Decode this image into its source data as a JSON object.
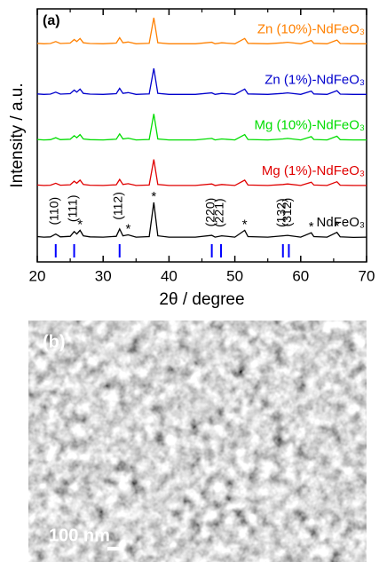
{
  "chart_data": {
    "type": "line",
    "panel_label": "(a)",
    "x_label": "2θ / degree",
    "y_label": "Intensity / a.u.",
    "xlim": [
      20,
      70
    ],
    "xticks": [
      20,
      30,
      40,
      50,
      60,
      70
    ],
    "xticks_minor": [
      25,
      35,
      45,
      55,
      65
    ],
    "ylim": [
      0,
      100
    ],
    "x": [
      20,
      21,
      22,
      22.8,
      23.5,
      25,
      25.6,
      26,
      26.5,
      27,
      28,
      30,
      32,
      32.5,
      33,
      33.8,
      35,
      37,
      37.7,
      38.3,
      40,
      44,
      46.5,
      47,
      48,
      50,
      51.5,
      52,
      55,
      57.3,
      58,
      60,
      61.6,
      62,
      64,
      65.5,
      66,
      68,
      70
    ],
    "series": [
      {
        "name": "Zn (10%)-NdFeO₃",
        "color": "#ff8000",
        "values": [
          86.4,
          86.2,
          86.3,
          87.1,
          86.3,
          86.5,
          87.9,
          87.1,
          88.3,
          86.6,
          86.3,
          86.2,
          86.5,
          88.6,
          86.6,
          86.9,
          86.2,
          86.4,
          96.5,
          86.6,
          86.2,
          86.2,
          86.8,
          86.2,
          86.6,
          86.2,
          88.3,
          86.4,
          86.2,
          86.6,
          86.8,
          86.2,
          87.5,
          86.4,
          86.2,
          87.7,
          86.3,
          86.2,
          86.2
        ]
      },
      {
        "name": "Zn (1%)-NdFeO₃",
        "color": "#0000cc",
        "values": [
          66.4,
          66.2,
          66.3,
          67.1,
          66.3,
          66.5,
          67.9,
          67.1,
          68.3,
          66.6,
          66.3,
          66.2,
          66.5,
          68.6,
          66.6,
          66.9,
          66.2,
          66.4,
          76.5,
          66.6,
          66.2,
          66.2,
          66.8,
          66.2,
          66.6,
          66.2,
          68.3,
          66.4,
          66.2,
          66.6,
          66.8,
          66.2,
          67.5,
          66.4,
          66.2,
          67.7,
          66.3,
          66.2,
          66.2
        ]
      },
      {
        "name": "Mg (10%)-NdFeO₃",
        "color": "#00dd00",
        "values": [
          48.4,
          48.2,
          48.3,
          49.1,
          48.3,
          48.5,
          49.9,
          49.1,
          50.3,
          48.6,
          48.3,
          48.2,
          48.5,
          50.6,
          48.6,
          48.9,
          48.2,
          48.4,
          58.5,
          48.6,
          48.2,
          48.2,
          48.8,
          48.2,
          48.6,
          48.2,
          50.3,
          48.4,
          48.2,
          48.6,
          48.8,
          48.2,
          49.5,
          48.4,
          48.2,
          49.7,
          48.3,
          48.2,
          48.2
        ]
      },
      {
        "name": "Mg (1%)-NdFeO₃",
        "color": "#e00000",
        "values": [
          30.4,
          30.2,
          30.3,
          31.1,
          30.3,
          30.5,
          31.9,
          31.1,
          32.3,
          30.6,
          30.3,
          30.2,
          30.5,
          32.6,
          30.6,
          30.9,
          30.2,
          30.4,
          40.5,
          30.6,
          30.2,
          30.2,
          30.8,
          30.2,
          30.6,
          30.2,
          32.3,
          30.4,
          30.2,
          30.6,
          30.8,
          30.2,
          31.5,
          30.4,
          30.2,
          31.7,
          30.3,
          30.2,
          30.2
        ]
      },
      {
        "name": "NdFeO₃",
        "color": "#000000",
        "values": [
          10,
          9.8,
          9.9,
          11,
          9.9,
          10.1,
          12,
          11,
          12.5,
          10.3,
          9.9,
          9.8,
          10.1,
          13,
          10.3,
          10.7,
          9.8,
          10,
          23.5,
          10.3,
          9.8,
          9.8,
          10.5,
          9.8,
          10.3,
          9.8,
          12.5,
          10,
          9.8,
          10.3,
          10.5,
          9.8,
          11.5,
          10,
          9.8,
          11.7,
          9.9,
          9.7,
          9.8
        ]
      }
    ],
    "reference_peaks": [
      22.8,
      25.6,
      32.5,
      46.5,
      47.9,
      57.3,
      58.2
    ],
    "reference_color": "#0000ff",
    "hkl_labels": [
      {
        "x": 22.8,
        "label": "(110)"
      },
      {
        "x": 25.6,
        "label": "(111)"
      },
      {
        "x": 32.5,
        "label": "(112)"
      },
      {
        "x": 46.5,
        "label": "(220)"
      },
      {
        "x": 47.9,
        "label": "(221)"
      },
      {
        "x": 57.3,
        "label": "(132)"
      },
      {
        "x": 58.2,
        "label": "(312)"
      }
    ],
    "impurity_marks": {
      "label": "*",
      "x": [
        26.5,
        33.8,
        37.7,
        51.5,
        61.6,
        65.5
      ]
    }
  },
  "image_panel": {
    "label": "(b)",
    "scale_bar_label": "100 nm"
  }
}
